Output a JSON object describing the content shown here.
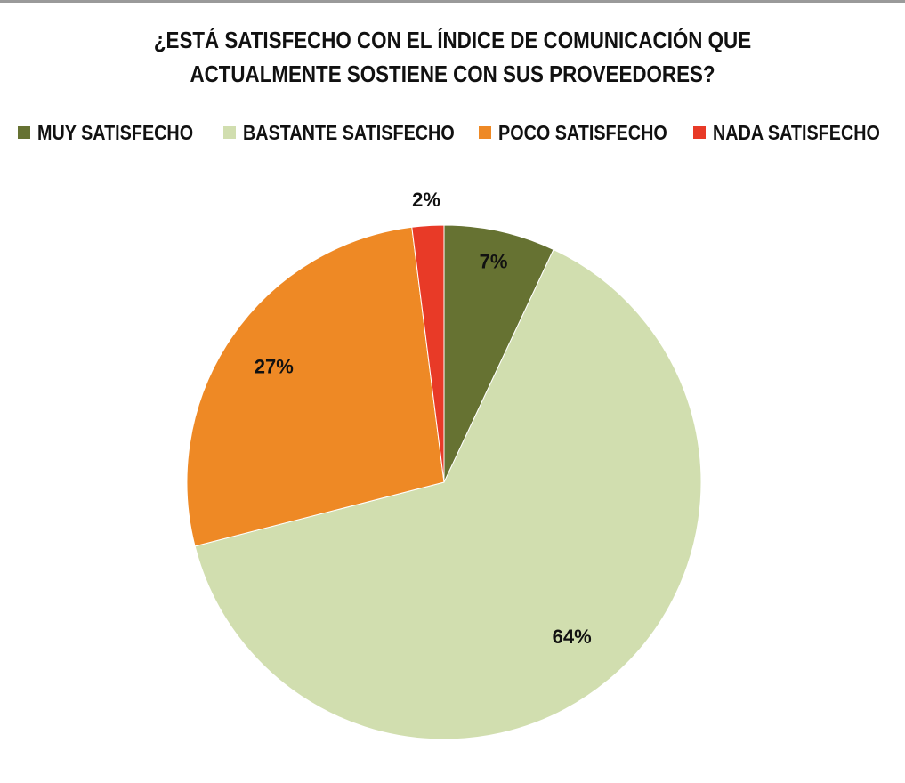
{
  "chart_data": {
    "type": "pie",
    "title": [
      "¿ESTÁ SATISFECHO CON EL ÍNDICE DE COMUNICACIÓN QUE",
      "ACTUALMENTE SOSTIENE CON SUS PROVEEDORES?"
    ],
    "legend_position": "top",
    "slices": [
      {
        "name": "MUY SATISFECHO",
        "value": 7,
        "label": "7%",
        "color": "#667232"
      },
      {
        "name": "BASTANTE SATISFECHO",
        "value": 64,
        "label": "64%",
        "color": "#d1deaf"
      },
      {
        "name": "POCO SATISFECHO",
        "value": 27,
        "label": "27%",
        "color": "#ee8925"
      },
      {
        "name": "NADA SATISFECHO",
        "value": 2,
        "label": "2%",
        "color": "#e83a27"
      }
    ]
  }
}
